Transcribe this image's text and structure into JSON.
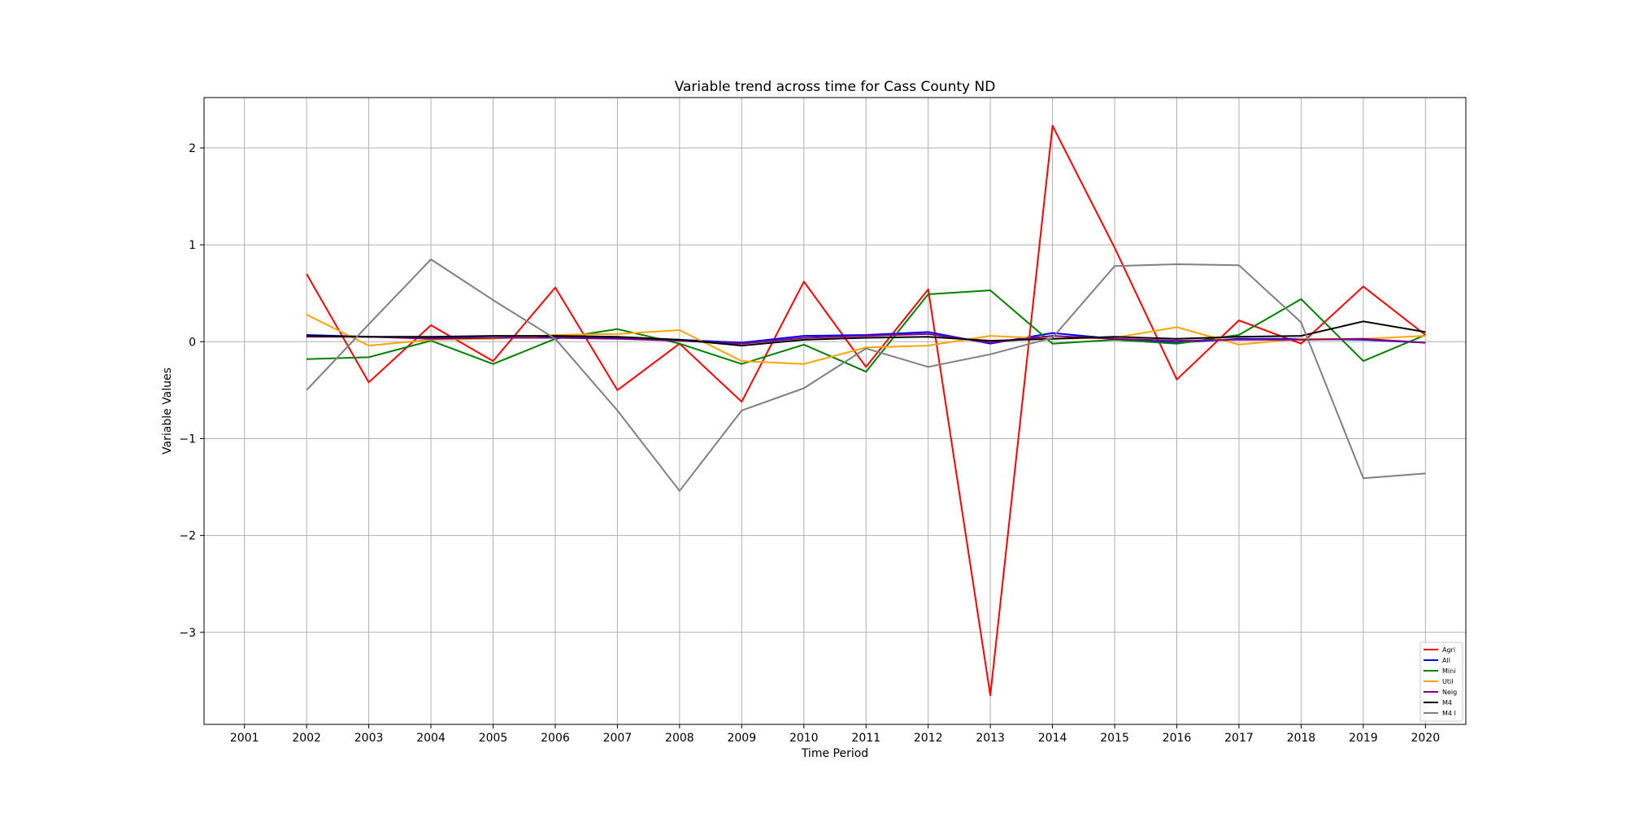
{
  "chart_data": {
    "type": "line",
    "title": "Variable trend across time for Cass County ND",
    "xlabel": "Time Period",
    "ylabel": "Variable Values",
    "x_ticks": [
      "2001",
      "2002",
      "2003",
      "2004",
      "2005",
      "2006",
      "2007",
      "2008",
      "2009",
      "2010",
      "2011",
      "2012",
      "2013",
      "2014",
      "2015",
      "2016",
      "2017",
      "2018",
      "2019",
      "2020"
    ],
    "x": [
      2002,
      2003,
      2004,
      2005,
      2006,
      2007,
      2008,
      2009,
      2010,
      2011,
      2012,
      2013,
      2014,
      2015,
      2016,
      2017,
      2018,
      2019,
      2020
    ],
    "xlim": [
      2000.35,
      2020.65
    ],
    "y_ticks": [
      2,
      1,
      0,
      -1,
      -2,
      -3
    ],
    "y_tick_labels": [
      "2",
      "1",
      "0",
      "−1",
      "−2",
      "−3"
    ],
    "ylim": [
      -3.95,
      2.52
    ],
    "grid": true,
    "legend_position": "lower-right",
    "series": [
      {
        "name": "Agri",
        "color": "#ff0000",
        "values": [
          0.7,
          -0.42,
          0.17,
          -0.2,
          0.56,
          -0.5,
          -0.02,
          -0.62,
          0.62,
          -0.26,
          0.54,
          -3.65,
          2.23,
          0.97,
          -0.39,
          0.22,
          -0.02,
          0.57,
          0.07
        ]
      },
      {
        "name": "All",
        "color": "#0000ff",
        "values": [
          0.07,
          0.05,
          0.04,
          0.04,
          0.05,
          0.04,
          0.02,
          -0.01,
          0.06,
          0.07,
          0.1,
          -0.02,
          0.09,
          0.03,
          -0.01,
          0.03,
          0.03,
          0.02,
          -0.01
        ]
      },
      {
        "name": "Mini",
        "color": "#008000",
        "values": [
          -0.18,
          -0.16,
          0.01,
          -0.23,
          0.03,
          0.13,
          -0.02,
          -0.23,
          -0.03,
          -0.31,
          0.49,
          0.53,
          -0.02,
          0.02,
          -0.02,
          0.07,
          0.44,
          -0.2,
          0.07
        ]
      },
      {
        "name": "Util",
        "color": "#ffa500",
        "values": [
          0.28,
          -0.04,
          0.02,
          0.03,
          0.07,
          0.08,
          0.12,
          -0.2,
          -0.23,
          -0.06,
          -0.04,
          0.06,
          0.03,
          0.04,
          0.15,
          -0.03,
          0.03,
          0.03,
          0.06
        ]
      },
      {
        "name": "Neig",
        "color": "#800080",
        "values": [
          0.05,
          0.05,
          0.03,
          0.04,
          0.04,
          0.03,
          0.01,
          -0.02,
          0.04,
          0.06,
          0.08,
          -0.01,
          0.06,
          0.03,
          0.01,
          0.02,
          0.02,
          0.03,
          -0.01
        ]
      },
      {
        "name": "M4",
        "color": "#000000",
        "values": [
          0.06,
          0.05,
          0.05,
          0.06,
          0.06,
          0.05,
          0.02,
          -0.04,
          0.02,
          0.04,
          0.05,
          0.01,
          0.03,
          0.05,
          0.03,
          0.05,
          0.06,
          0.21,
          0.1
        ]
      },
      {
        "name": "M4 I",
        "color": "#808080",
        "values": [
          -0.5,
          0.18,
          0.85,
          0.43,
          0.03,
          -0.71,
          -1.54,
          -0.71,
          -0.48,
          -0.07,
          -0.26,
          -0.13,
          0.04,
          0.78,
          0.8,
          0.79,
          0.2,
          -1.41,
          -1.36
        ]
      }
    ]
  }
}
